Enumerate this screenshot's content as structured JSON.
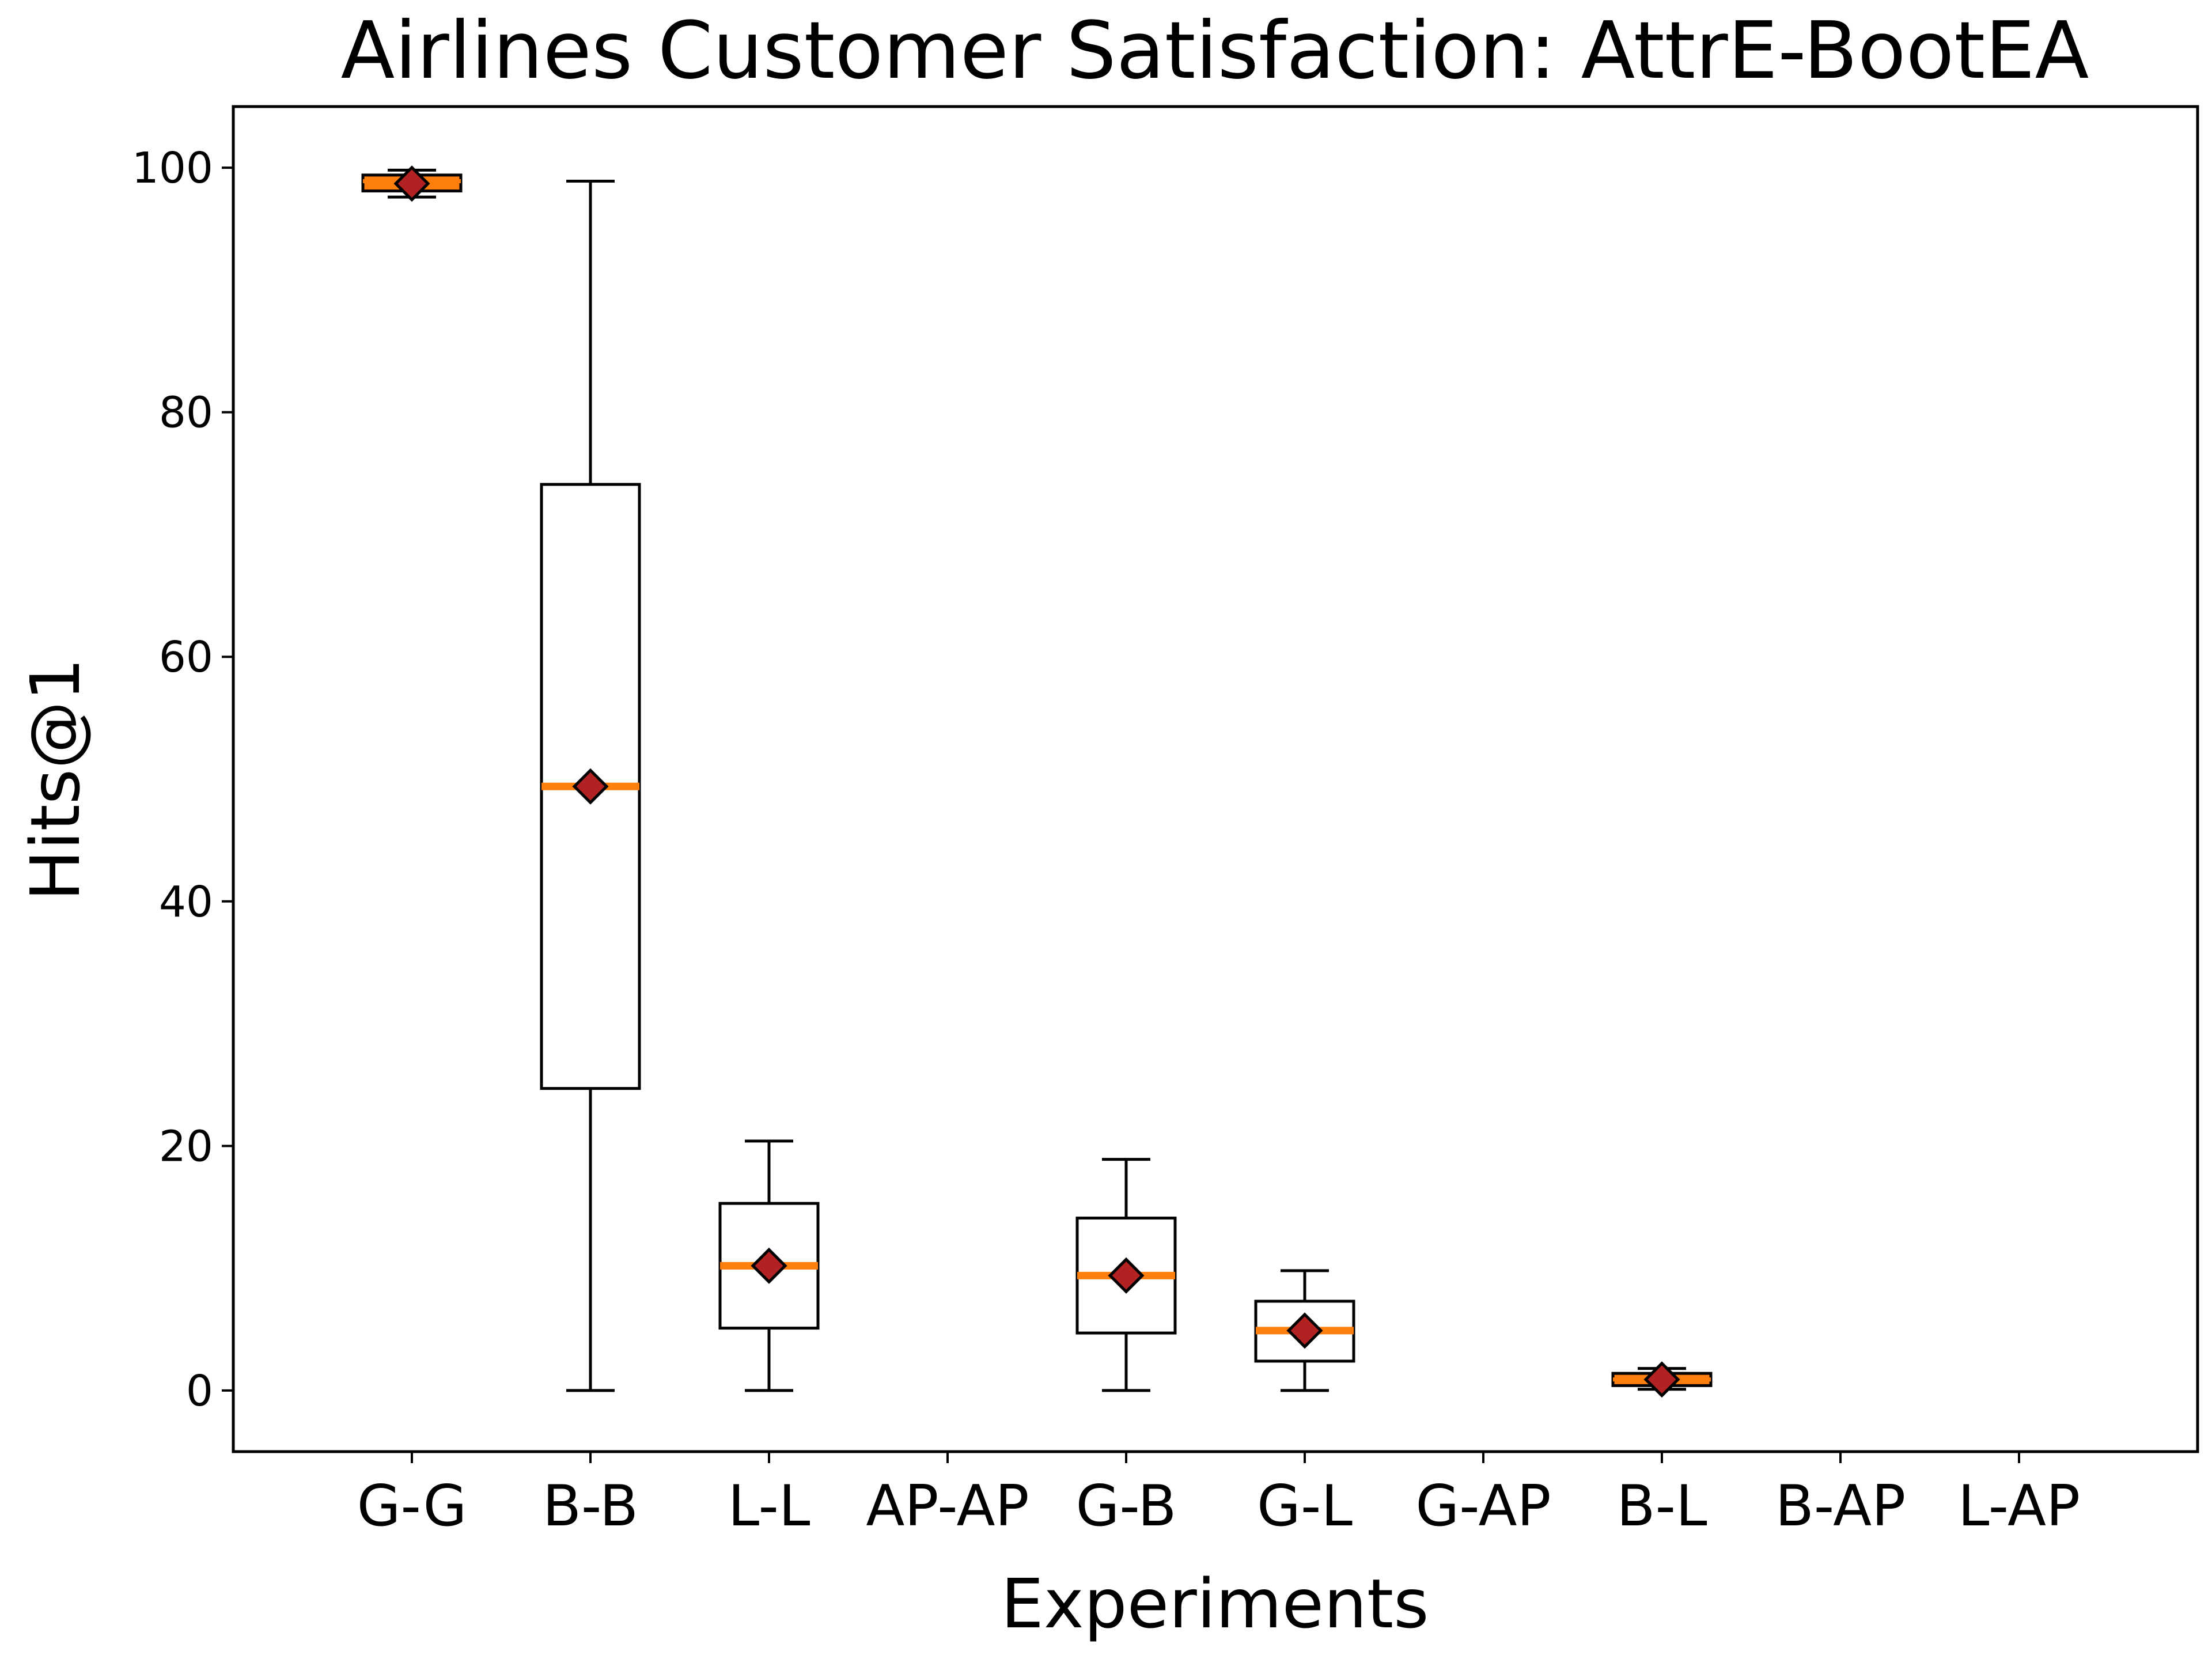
{
  "chart_data": {
    "type": "boxplot",
    "title": "Airlines Customer Satisfaction: AttrE-BootEA",
    "xlabel": "Experiments",
    "ylabel": "Hits@1",
    "ylim": [
      -5,
      105
    ],
    "yticks": [
      0,
      20,
      40,
      60,
      80,
      100
    ],
    "grid": false,
    "colors": {
      "median": "#ff7f0e",
      "mean_marker": "#b22222",
      "box": "#000000"
    },
    "categories": [
      "G-G",
      "B-B",
      "L-L",
      "AP-AP",
      "G-B",
      "G-L",
      "G-AP",
      "B-L",
      "B-AP",
      "L-AP"
    ],
    "boxes": [
      {
        "whisker_low": 97.6,
        "q1": 98.1,
        "median": 98.9,
        "q3": 99.4,
        "whisker_high": 99.8,
        "mean": 98.7
      },
      {
        "whisker_low": 0,
        "q1": 24.7,
        "median": 49.4,
        "q3": 74.1,
        "whisker_high": 98.9,
        "mean": 49.4
      },
      {
        "whisker_low": 0,
        "q1": 5.1,
        "median": 10.2,
        "q3": 15.3,
        "whisker_high": 20.4,
        "mean": 10.2
      },
      null,
      {
        "whisker_low": 0,
        "q1": 4.7,
        "median": 9.4,
        "q3": 14.1,
        "whisker_high": 18.9,
        "mean": 9.4
      },
      {
        "whisker_low": 0,
        "q1": 2.4,
        "median": 4.9,
        "q3": 7.3,
        "whisker_high": 9.8,
        "mean": 4.9
      },
      null,
      {
        "whisker_low": 0.1,
        "q1": 0.4,
        "median": 0.9,
        "q3": 1.4,
        "whisker_high": 1.8,
        "mean": 0.9
      },
      null,
      null
    ]
  }
}
